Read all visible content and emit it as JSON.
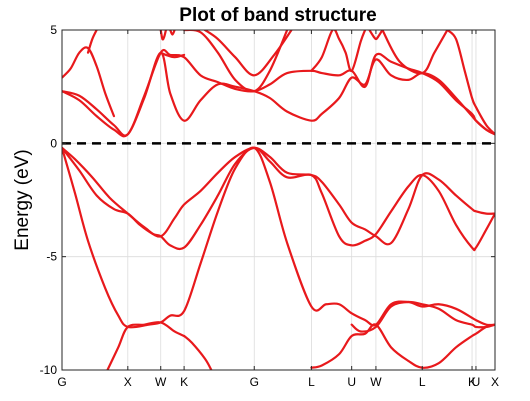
{
  "chart_data": {
    "type": "line",
    "title": "Plot of band structure",
    "xlabel": "",
    "ylabel": "Energy (eV)",
    "ylim": [
      -10,
      5
    ],
    "xlim": [
      0,
      1
    ],
    "grid": true,
    "fermi_level": 0,
    "y_ticks": [
      {
        "value": 5,
        "label": "5"
      },
      {
        "value": 0,
        "label": "0"
      },
      {
        "value": -5,
        "label": "-5"
      },
      {
        "value": -10,
        "label": "-10"
      }
    ],
    "x_ticks": [
      {
        "pos": 0.0,
        "label": "G"
      },
      {
        "pos": 0.152,
        "label": "X"
      },
      {
        "pos": 0.228,
        "label": "W"
      },
      {
        "pos": 0.282,
        "label": "K"
      },
      {
        "pos": 0.444,
        "label": "G"
      },
      {
        "pos": 0.576,
        "label": "L"
      },
      {
        "pos": 0.669,
        "label": "U"
      },
      {
        "pos": 0.725,
        "label": "W"
      },
      {
        "pos": 0.832,
        "label": "L"
      },
      {
        "pos": 0.947,
        "label": "K"
      },
      {
        "pos": 0.956,
        "label": "U"
      },
      {
        "pos": 1.0,
        "label": "X"
      }
    ],
    "line_color": "#e8191c",
    "series": [
      {
        "x": [
          0,
          0.04,
          0.08,
          0.12,
          0.152,
          0.18,
          0.21,
          0.228,
          0.25,
          0.282,
          0.32,
          0.36,
          0.4,
          0.444,
          0.48,
          0.52,
          0.576,
          0.6,
          0.64,
          0.669,
          0.7,
          0.725,
          0.76,
          0.8,
          0.832,
          0.87,
          0.91,
          0.947,
          0.956,
          0.98,
          1.0
        ],
        "y": [
          -0.2,
          -1.2,
          -2.3,
          -2.9,
          -3.1,
          -3.6,
          -4.0,
          -4.1,
          -4.5,
          -4.6,
          -3.6,
          -2.3,
          -0.9,
          -0.2,
          -0.8,
          -1.5,
          -1.4,
          -2.2,
          -4.1,
          -4.5,
          -4.3,
          -4.0,
          -3.0,
          -1.9,
          -1.4,
          -2.1,
          -3.6,
          -4.6,
          -4.6,
          -3.8,
          -3.1
        ]
      },
      {
        "x": [
          0,
          0.03,
          0.07,
          0.11,
          0.152,
          0.19,
          0.228,
          0.26,
          0.282,
          0.32,
          0.36,
          0.4,
          0.444,
          0.48,
          0.52,
          0.576,
          0.6,
          0.64,
          0.669,
          0.7,
          0.725,
          0.76,
          0.8,
          0.832,
          0.87,
          0.91,
          0.947,
          0.956,
          0.98,
          1.0
        ],
        "y": [
          -0.2,
          -0.7,
          -1.5,
          -2.4,
          -3.1,
          -3.7,
          -4.1,
          -3.3,
          -2.7,
          -2.1,
          -1.3,
          -0.6,
          -0.2,
          -0.6,
          -1.3,
          -1.4,
          -1.7,
          -2.7,
          -3.5,
          -3.8,
          -4.1,
          -4.4,
          -2.9,
          -1.4,
          -1.6,
          -2.3,
          -2.9,
          -3.0,
          -3.1,
          -3.1
        ]
      },
      {
        "x": [
          0,
          0.03,
          0.06,
          0.1,
          0.13,
          0.152,
          0.2,
          0.228,
          0.25,
          0.282,
          0.32,
          0.36,
          0.4,
          0.444,
          0.48,
          0.52,
          0.576,
          0.61,
          0.64,
          0.669,
          0.7,
          0.725,
          0.76,
          0.8,
          0.832,
          0.87,
          0.91,
          0.947,
          0.956,
          0.98,
          1.0
        ],
        "y": [
          -0.2,
          -2.2,
          -4.3,
          -6.4,
          -7.6,
          -8.1,
          -8.0,
          -7.9,
          -7.6,
          -7.4,
          -5.3,
          -3.0,
          -1.1,
          -0.2,
          -1.7,
          -4.4,
          -7.2,
          -7.1,
          -7.1,
          -7.5,
          -7.8,
          -8.0,
          -7.1,
          -7.0,
          -7.2,
          -7.1,
          -7.3,
          -7.7,
          -7.8,
          -8.0,
          -8.0
        ]
      },
      {
        "x": [
          0.105,
          0.13,
          0.152,
          0.19,
          0.228,
          0.26,
          0.282
        ],
        "y": [
          -10,
          -9.0,
          -8.1,
          -8.0,
          -7.9,
          -8.3,
          -8.5
        ]
      },
      {
        "x": [
          0.282,
          0.3,
          0.33,
          0.345
        ],
        "y": [
          -8.5,
          -8.8,
          -9.5,
          -10
        ]
      },
      {
        "x": [
          0.576,
          0.6,
          0.64,
          0.669,
          0.7,
          0.725,
          0.76,
          0.8,
          0.832,
          0.87,
          0.91,
          0.947,
          0.956,
          0.98,
          1.0
        ],
        "y": [
          -9.9,
          -9.8,
          -9.3,
          -8.5,
          -8.4,
          -8.0,
          -9.0,
          -9.6,
          -9.9,
          -9.7,
          -9.0,
          -8.5,
          -8.4,
          -8.1,
          -8.0
        ]
      },
      {
        "x": [
          0.669,
          0.69,
          0.725,
          0.76,
          0.8,
          0.832,
          0.87,
          0.91,
          0.947,
          0.956,
          0.98,
          1.0
        ],
        "y": [
          -8.0,
          -8.3,
          -8.1,
          -7.2,
          -7.0,
          -7.1,
          -7.3,
          -7.8,
          -8.0,
          -8.1,
          -8.1,
          -8.0
        ]
      },
      {
        "x": [
          0,
          0.04,
          0.08,
          0.12,
          0.152,
          0.19,
          0.228,
          0.25,
          0.282,
          0.32,
          0.36,
          0.4,
          0.444,
          0.48,
          0.52,
          0.576,
          0.6,
          0.64,
          0.669,
          0.7,
          0.725,
          0.76,
          0.8,
          0.832,
          0.87,
          0.91,
          0.947,
          0.956,
          0.98,
          1.0
        ],
        "y": [
          2.3,
          1.9,
          1.2,
          0.6,
          0.4,
          2.0,
          4.0,
          2.2,
          1.0,
          1.9,
          2.6,
          2.5,
          2.3,
          2.0,
          1.4,
          1.0,
          1.3,
          2.0,
          2.9,
          2.6,
          3.7,
          3.0,
          2.8,
          3.1,
          2.8,
          2.0,
          1.2,
          1.0,
          0.6,
          0.4
        ]
      },
      {
        "x": [
          0,
          0.04,
          0.08,
          0.12,
          0.152,
          0.19,
          0.228,
          0.25,
          0.282,
          0.32,
          0.36,
          0.4,
          0.444,
          0.48,
          0.52,
          0.576,
          0.6,
          0.64,
          0.669,
          0.7,
          0.725,
          0.76,
          0.8,
          0.832,
          0.87,
          0.91,
          0.947,
          0.956,
          0.98,
          1.0
        ],
        "y": [
          2.3,
          2.1,
          1.5,
          0.8,
          0.4,
          2.1,
          4.0,
          3.9,
          3.8,
          3.0,
          2.7,
          2.4,
          2.3,
          2.6,
          3.1,
          3.2,
          3.1,
          3.0,
          3.2,
          2.5,
          3.9,
          3.6,
          3.3,
          3.1,
          2.7,
          1.9,
          1.3,
          1.0,
          0.6,
          0.4
        ]
      },
      {
        "x": [
          0,
          0.02,
          0.04,
          0.06,
          0.08,
          0.1,
          0.12
        ],
        "y": [
          2.9,
          3.3,
          4.0,
          4.2,
          3.4,
          2.2,
          1.2
        ]
      },
      {
        "x": [
          0.06,
          0.07,
          0.08
        ],
        "y": [
          4.0,
          4.6,
          5.0
        ]
      },
      {
        "x": [
          0.228,
          0.24,
          0.26,
          0.282
        ],
        "y": [
          4.0,
          3.9,
          3.8,
          3.9
        ]
      },
      {
        "x": [
          0.228,
          0.232,
          0.236,
          0.24
        ],
        "y": [
          5.0,
          4.6,
          4.7,
          5.0
        ]
      },
      {
        "x": [
          0.25,
          0.255,
          0.26
        ],
        "y": [
          5.0,
          4.8,
          5.0
        ]
      },
      {
        "x": [
          0.282,
          0.32,
          0.36,
          0.4,
          0.444,
          0.48,
          0.52
        ],
        "y": [
          5.0,
          4.9,
          4.0,
          2.8,
          2.3,
          3.2,
          5.0
        ]
      },
      {
        "x": [
          0.33,
          0.36,
          0.4,
          0.444,
          0.49,
          0.53
        ],
        "y": [
          5.0,
          4.6,
          3.8,
          3.0,
          3.9,
          5.0
        ]
      },
      {
        "x": [
          0.576,
          0.6,
          0.625,
          0.64,
          0.655,
          0.669,
          0.69,
          0.7
        ],
        "y": [
          3.2,
          3.8,
          5.0,
          4.6,
          4.0,
          3.2,
          4.5,
          5.0
        ]
      },
      {
        "x": [
          0.71,
          0.72,
          0.725,
          0.73,
          0.74
        ],
        "y": [
          5.0,
          4.7,
          4.6,
          4.7,
          5.0
        ]
      },
      {
        "x": [
          0.74,
          0.78,
          0.832,
          0.86,
          0.89
        ],
        "y": [
          5.0,
          3.6,
          3.1,
          4.0,
          5.0
        ]
      },
      {
        "x": [
          0.89,
          0.91,
          0.93,
          0.947,
          0.956,
          0.98,
          1.0
        ],
        "y": [
          5.0,
          4.6,
          3.2,
          2.0,
          1.6,
          0.8,
          0.4
        ]
      }
    ]
  }
}
